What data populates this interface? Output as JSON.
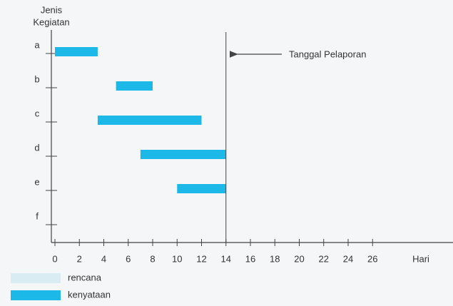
{
  "chart_data": {
    "type": "gantt",
    "y_axis_label": [
      "Jenis",
      "Kegiatan"
    ],
    "x_axis_label": "Hari",
    "categories": [
      "a",
      "b",
      "c",
      "d",
      "e",
      "f"
    ],
    "series": [
      {
        "name": "rencana",
        "color": "#d9ebf3",
        "start": [
          null,
          null,
          null,
          null,
          null,
          null
        ],
        "end": [
          null,
          null,
          null,
          null,
          null,
          null
        ]
      },
      {
        "name": "kenyataan",
        "color": "#1cb9e8",
        "start": [
          0,
          5,
          3.5,
          7,
          10,
          null
        ],
        "end": [
          3.5,
          8,
          12,
          14,
          14,
          null
        ]
      }
    ],
    "xlim": [
      0,
      32
    ],
    "xticks": [
      0,
      2,
      4,
      6,
      8,
      10,
      12,
      14,
      16,
      18,
      20,
      22,
      24,
      26
    ],
    "marker": {
      "value": 14,
      "label": "Tanggal Pelaporan"
    }
  }
}
